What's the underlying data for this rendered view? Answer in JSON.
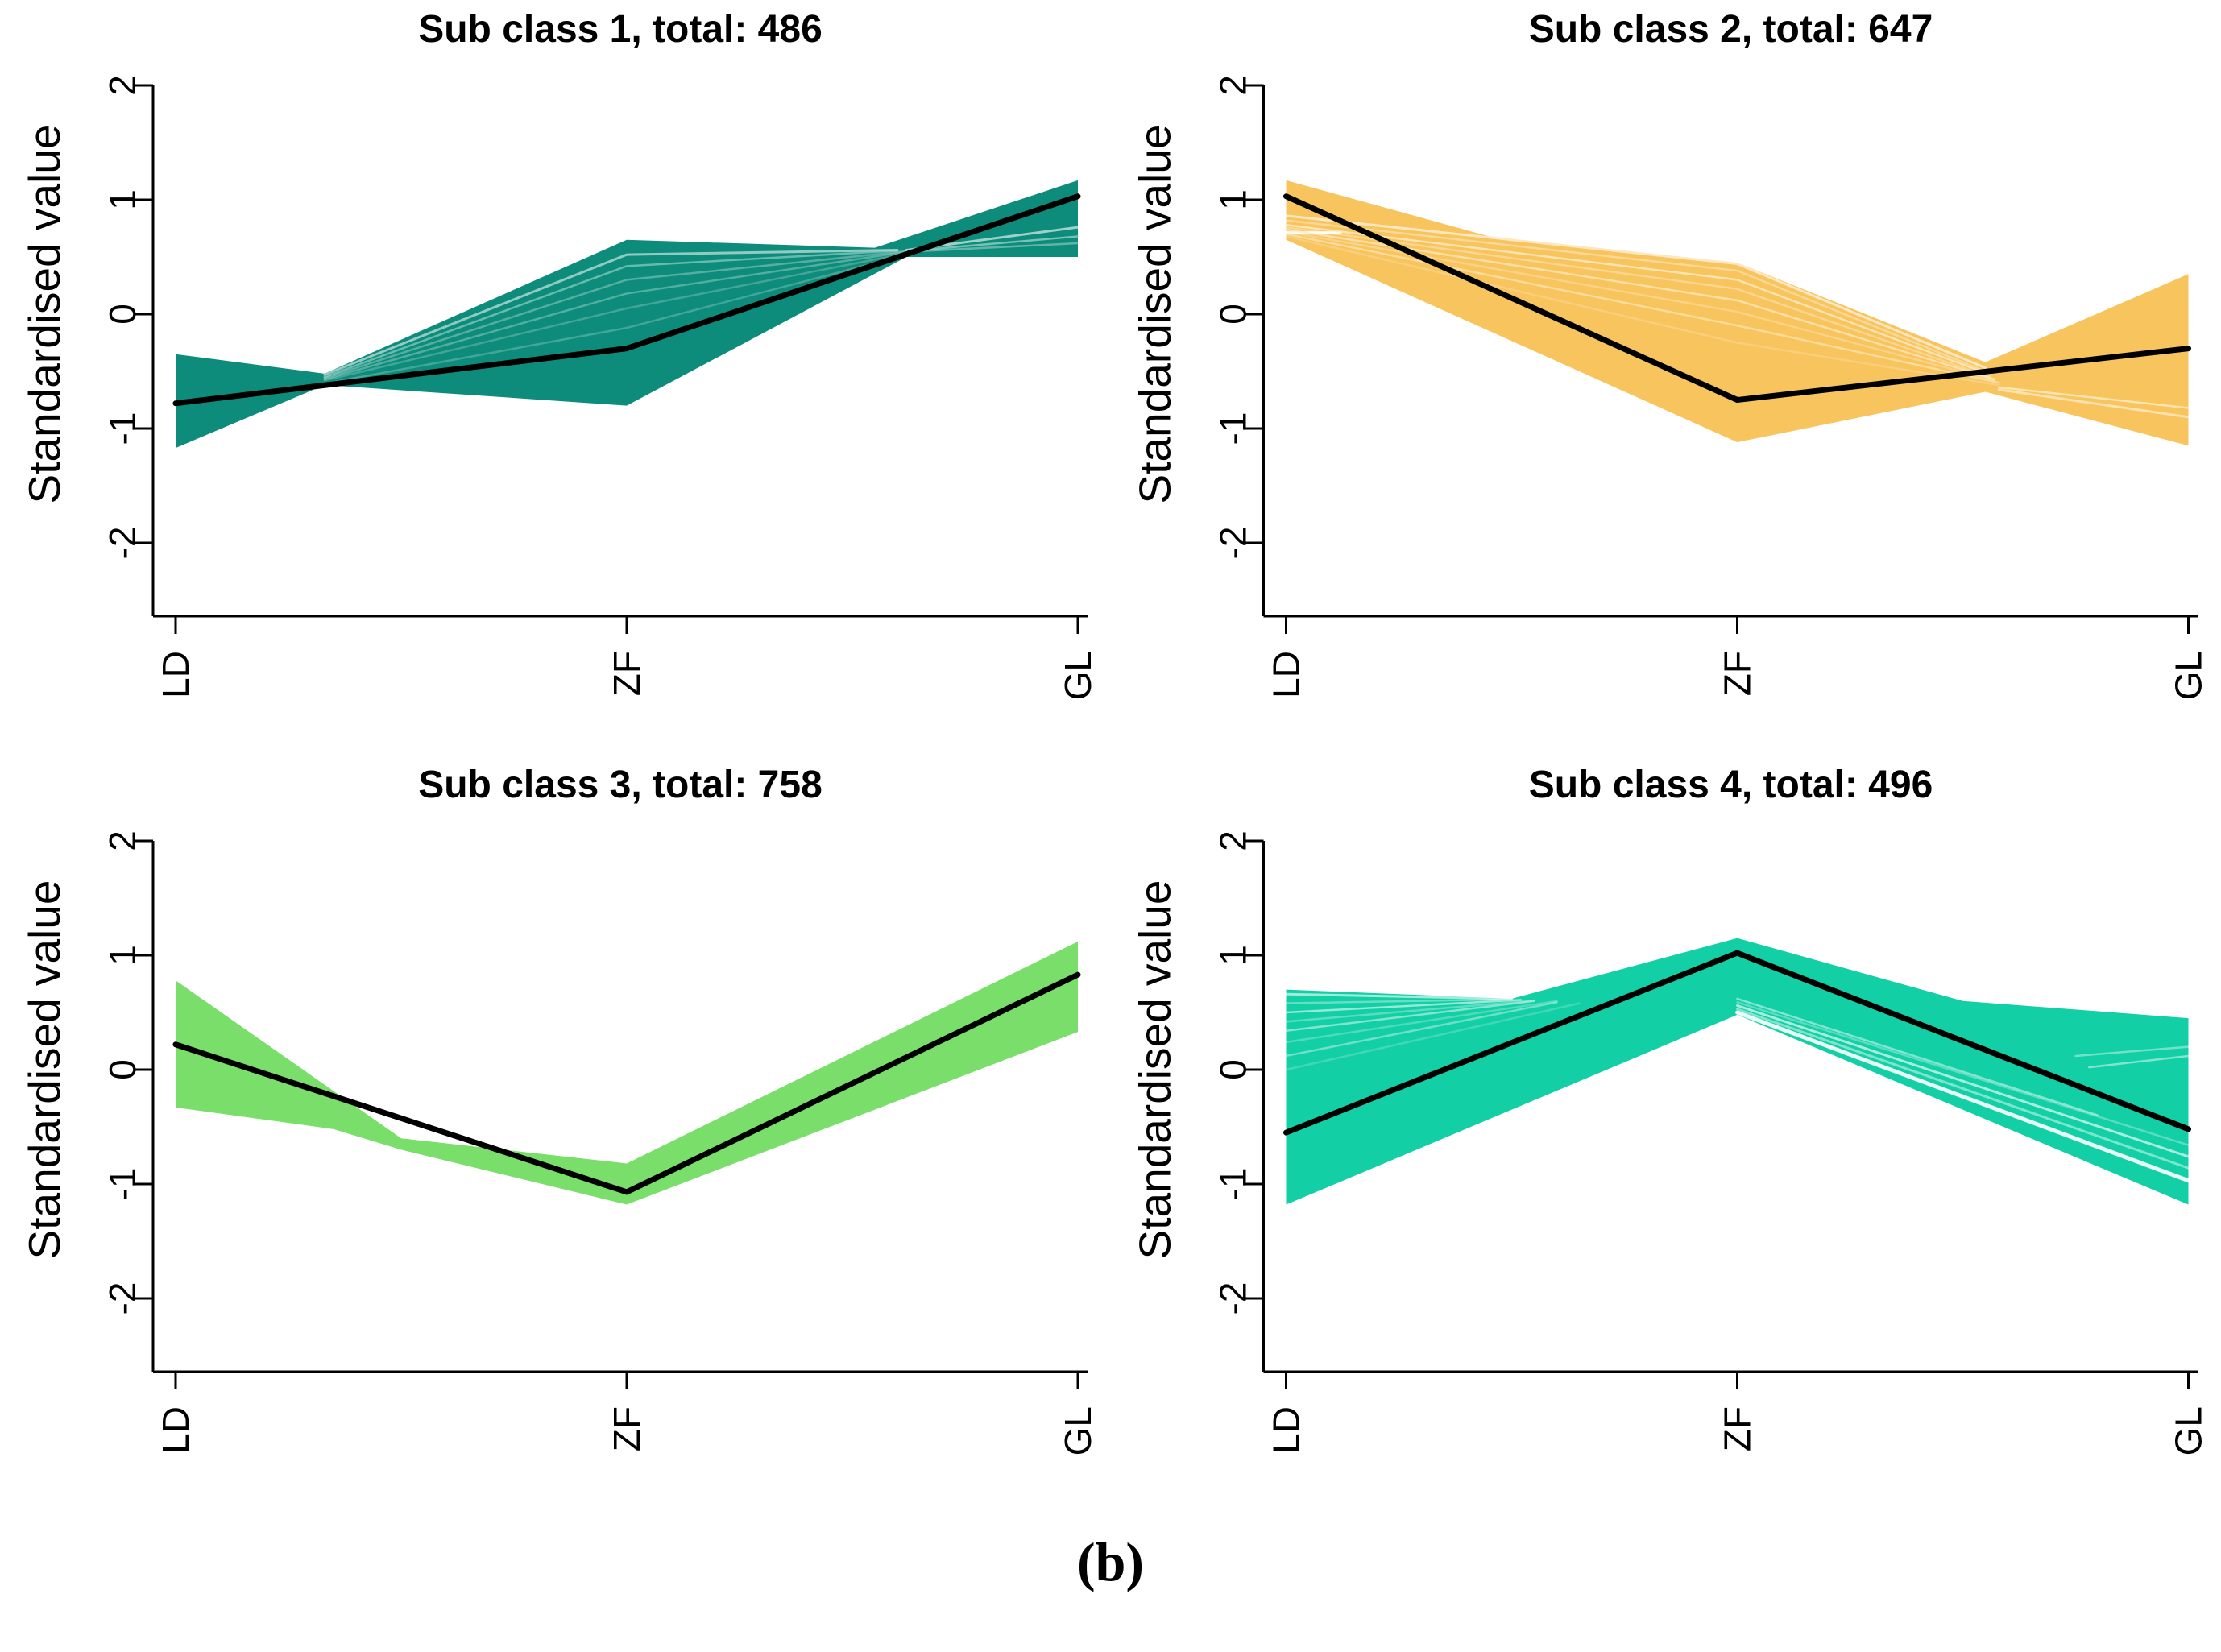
{
  "caption": "(b)",
  "background_color": "#ffffff",
  "axis": {
    "ylabel": "Standardised value",
    "ytick_values": [
      2,
      1,
      0,
      -1,
      -2
    ],
    "ytick_labels": [
      "2",
      "1",
      "0",
      "-1",
      "-2"
    ],
    "xtick_labels": [
      "LD",
      "ZF",
      "GL"
    ],
    "ylim": [
      -2,
      2
    ],
    "tick_rotation_deg": -90,
    "axis_color": "#000000",
    "mean_line_color": "#000000"
  },
  "chart_data": {
    "type": "line",
    "layout": "2x2-small-multiples",
    "x_categories": [
      "LD",
      "ZF",
      "GL"
    ],
    "ylabel": "Standardised value",
    "ylim": [
      -2,
      2
    ],
    "grid": false,
    "legend": "none",
    "description": "Longitudinal cluster plots: each panel shows a band (envelope of individual standardised trajectories) with a black mean trajectory across LD, ZF, GL.",
    "plots": [
      {
        "title": "Sub class 1, total: 486",
        "subclass": 1,
        "total": 486,
        "band_color": "#0E8C7B",
        "mean": [
          [
            0,
            -0.78
          ],
          [
            1,
            -0.3
          ],
          [
            2,
            1.03
          ]
        ],
        "envelope_upper": [
          [
            0,
            -0.35
          ],
          [
            0.33,
            -0.52
          ],
          [
            1,
            0.65
          ],
          [
            1.55,
            0.58
          ],
          [
            2,
            1.17
          ]
        ],
        "envelope_lower": [
          [
            0,
            -1.17
          ],
          [
            0.33,
            -0.62
          ],
          [
            1,
            -0.8
          ],
          [
            1.62,
            0.5
          ],
          [
            2,
            0.5
          ]
        ],
        "streaks": [
          {
            "points": [
              [
                0.33,
                -0.53
              ],
              [
                1,
                0.52
              ],
              [
                1.6,
                0.56
              ]
            ],
            "color": "rgba(255,255,255,0.55)",
            "width": 3
          },
          {
            "points": [
              [
                0.33,
                -0.55
              ],
              [
                1,
                0.42
              ],
              [
                1.6,
                0.555
              ]
            ],
            "color": "rgba(163,216,208,0.6)",
            "width": 2.5
          },
          {
            "points": [
              [
                0.33,
                -0.56
              ],
              [
                1,
                0.3
              ],
              [
                1.62,
                0.55
              ]
            ],
            "color": "rgba(255,255,255,0.3)",
            "width": 2.5
          },
          {
            "points": [
              [
                0.33,
                -0.57
              ],
              [
                1,
                0.18
              ],
              [
                1.62,
                0.545
              ]
            ],
            "color": "rgba(163,216,208,0.45)",
            "width": 2.5
          },
          {
            "points": [
              [
                0.33,
                -0.58
              ],
              [
                1,
                0.05
              ],
              [
                1.63,
                0.54
              ]
            ],
            "color": "rgba(255,255,255,0.22)",
            "width": 2.5
          },
          {
            "points": [
              [
                0.34,
                -0.6
              ],
              [
                1,
                -0.12
              ],
              [
                1.63,
                0.53
              ]
            ],
            "color": "rgba(163,216,208,0.35)",
            "width": 2.5
          },
          {
            "points": [
              [
                1.62,
                0.56
              ],
              [
                2,
                0.76
              ]
            ],
            "color": "rgba(255,255,255,0.6)",
            "width": 3
          },
          {
            "points": [
              [
                1.62,
                0.55
              ],
              [
                2,
                0.68
              ]
            ],
            "color": "rgba(163,216,208,0.7)",
            "width": 2.5
          },
          {
            "points": [
              [
                1.62,
                0.545
              ],
              [
                2,
                0.62
              ]
            ],
            "color": "rgba(255,255,255,0.35)",
            "width": 2.5
          }
        ]
      },
      {
        "title": "Sub class 2, total: 647",
        "subclass": 2,
        "total": 647,
        "band_color": "#F8C45E",
        "mean": [
          [
            0,
            1.03
          ],
          [
            1,
            -0.75
          ],
          [
            2,
            -0.3
          ]
        ],
        "envelope_upper": [
          [
            0,
            1.17
          ],
          [
            0.45,
            0.68
          ],
          [
            1,
            0.45
          ],
          [
            1.55,
            -0.42
          ],
          [
            2,
            0.35
          ]
        ],
        "envelope_lower": [
          [
            0,
            0.65
          ],
          [
            1,
            -1.12
          ],
          [
            1.55,
            -0.68
          ],
          [
            2,
            -1.15
          ]
        ],
        "streaks": [
          {
            "points": [
              [
                0,
                0.71
              ],
              [
                0.12,
                0.71
              ]
            ],
            "color": "rgba(255,255,255,0.95)",
            "width": 4
          },
          {
            "points": [
              [
                0,
                0.86
              ],
              [
                1,
                0.44
              ],
              [
                1.55,
                -0.47
              ]
            ],
            "color": "rgba(255,255,255,0.6)",
            "width": 3
          },
          {
            "points": [
              [
                0,
                0.82
              ],
              [
                1,
                0.38
              ],
              [
                1.55,
                -0.5
              ]
            ],
            "color": "rgba(255,255,255,0.35)",
            "width": 2.5
          },
          {
            "points": [
              [
                0,
                0.78
              ],
              [
                1,
                0.3
              ],
              [
                1.56,
                -0.53
              ]
            ],
            "color": "rgba(253,236,200,0.8)",
            "width": 2.5
          },
          {
            "points": [
              [
                0,
                0.76
              ],
              [
                1,
                0.22
              ],
              [
                1.56,
                -0.55
              ]
            ],
            "color": "rgba(255,255,255,0.3)",
            "width": 2.5
          },
          {
            "points": [
              [
                0,
                0.74
              ],
              [
                1,
                0.12
              ],
              [
                1.57,
                -0.57
              ]
            ],
            "color": "rgba(253,236,200,0.7)",
            "width": 2.5
          },
          {
            "points": [
              [
                0,
                0.72
              ],
              [
                1,
                0.02
              ],
              [
                1.57,
                -0.58
              ]
            ],
            "color": "rgba(255,255,255,0.25)",
            "width": 2.5
          },
          {
            "points": [
              [
                0,
                0.7
              ],
              [
                1,
                -0.1
              ],
              [
                1.58,
                -0.6
              ]
            ],
            "color": "rgba(253,236,200,0.6)",
            "width": 2.5
          },
          {
            "points": [
              [
                0,
                0.68
              ],
              [
                1,
                -0.25
              ],
              [
                1.58,
                -0.62
              ]
            ],
            "color": "rgba(255,255,255,0.2)",
            "width": 2.5
          },
          {
            "points": [
              [
                1.58,
                -0.66
              ],
              [
                2,
                -0.9
              ]
            ],
            "color": "rgba(255,255,255,0.5)",
            "width": 3
          },
          {
            "points": [
              [
                1.58,
                -0.64
              ],
              [
                2,
                -0.82
              ]
            ],
            "color": "rgba(253,236,200,0.8)",
            "width": 2.5
          }
        ]
      },
      {
        "title": "Sub class 3, total: 758",
        "subclass": 3,
        "total": 758,
        "band_color": "#7ADE6B",
        "mean": [
          [
            0,
            0.22
          ],
          [
            1,
            -1.07
          ],
          [
            2,
            0.83
          ]
        ],
        "envelope_upper": [
          [
            0,
            0.78
          ],
          [
            0.5,
            -0.6
          ],
          [
            1,
            -0.82
          ],
          [
            2,
            1.12
          ]
        ],
        "envelope_lower": [
          [
            0,
            -0.33
          ],
          [
            0.35,
            -0.52
          ],
          [
            0.5,
            -0.7
          ],
          [
            1,
            -1.18
          ],
          [
            2,
            0.33
          ]
        ],
        "streaks": []
      },
      {
        "title": "Sub class 4, total: 496",
        "subclass": 4,
        "total": 496,
        "band_color": "#13CFA5",
        "mean": [
          [
            0,
            -0.55
          ],
          [
            1,
            1.02
          ],
          [
            2,
            -0.52
          ]
        ],
        "envelope_upper": [
          [
            0,
            0.7
          ],
          [
            0.5,
            0.62
          ],
          [
            1,
            1.15
          ],
          [
            1.5,
            0.6
          ],
          [
            2,
            0.45
          ]
        ],
        "envelope_lower": [
          [
            0,
            -1.18
          ],
          [
            1,
            0.48
          ],
          [
            2,
            -1.18
          ]
        ],
        "streaks": [
          {
            "points": [
              [
                0,
                0.66
              ],
              [
                0.5,
                0.62
              ]
            ],
            "color": "rgba(255,255,255,0.6)",
            "width": 3
          },
          {
            "points": [
              [
                0,
                0.58
              ],
              [
                0.5,
                0.615
              ]
            ],
            "color": "rgba(255,255,255,0.35)",
            "width": 2.5
          },
          {
            "points": [
              [
                0,
                0.5
              ],
              [
                0.52,
                0.61
              ]
            ],
            "color": "rgba(205,244,236,0.7)",
            "width": 2.5
          },
          {
            "points": [
              [
                0,
                0.42
              ],
              [
                0.55,
                0.605
              ]
            ],
            "color": "rgba(255,255,255,0.3)",
            "width": 2.5
          },
          {
            "points": [
              [
                0,
                0.34
              ],
              [
                0.55,
                0.6
              ]
            ],
            "color": "rgba(205,244,236,0.6)",
            "width": 2.5
          },
          {
            "points": [
              [
                0,
                0.24
              ],
              [
                0.6,
                0.6
              ]
            ],
            "color": "rgba(255,255,255,0.25)",
            "width": 2.5
          },
          {
            "points": [
              [
                0,
                0.12
              ],
              [
                0.6,
                0.59
              ]
            ],
            "color": "rgba(205,244,236,0.5)",
            "width": 2.5
          },
          {
            "points": [
              [
                0,
                0.0
              ],
              [
                0.65,
                0.58
              ]
            ],
            "color": "rgba(255,255,255,0.2)",
            "width": 2.5
          },
          {
            "points": [
              [
                1,
                0.5
              ],
              [
                2,
                -0.97
              ]
            ],
            "color": "rgba(255,255,255,0.9)",
            "width": 5
          },
          {
            "points": [
              [
                1,
                0.53
              ],
              [
                2,
                -0.86
              ]
            ],
            "color": "rgba(255,255,255,0.45)",
            "width": 3
          },
          {
            "points": [
              [
                1,
                0.56
              ],
              [
                2,
                -0.76
              ]
            ],
            "color": "rgba(205,244,236,0.8)",
            "width": 3
          },
          {
            "points": [
              [
                1,
                0.59
              ],
              [
                2,
                -0.66
              ]
            ],
            "color": "rgba(255,255,255,0.3)",
            "width": 2.5
          },
          {
            "points": [
              [
                1,
                0.62
              ],
              [
                1.8,
                -0.4
              ]
            ],
            "color": "rgba(205,244,236,0.6)",
            "width": 2.5
          },
          {
            "points": [
              [
                1.75,
                0.12
              ],
              [
                2,
                0.2
              ]
            ],
            "color": "rgba(255,255,255,0.4)",
            "width": 2.5
          },
          {
            "points": [
              [
                1.78,
                0.02
              ],
              [
                2,
                0.12
              ]
            ],
            "color": "rgba(205,244,236,0.6)",
            "width": 2.5
          }
        ]
      }
    ]
  }
}
